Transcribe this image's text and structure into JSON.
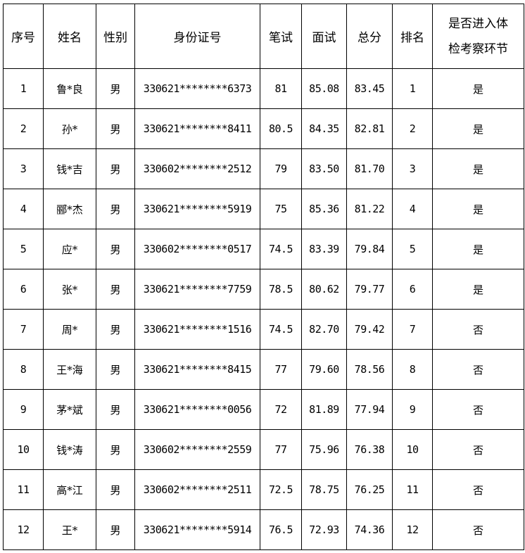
{
  "headers": [
    "序号",
    "姓名",
    "性别",
    "身份证号",
    "笔试",
    "面试",
    "总分",
    "排名",
    "是否进入体检考察环节"
  ],
  "rows": [
    [
      "1",
      "鲁*良",
      "男",
      "330621********6373",
      "81",
      "85.08",
      "83.45",
      "1",
      "是"
    ],
    [
      "2",
      "孙*",
      "男",
      "330621********8411",
      "80.5",
      "84.35",
      "82.81",
      "2",
      "是"
    ],
    [
      "3",
      "钱*吉",
      "男",
      "330602********2512",
      "79",
      "83.50",
      "81.70",
      "3",
      "是"
    ],
    [
      "4",
      "郦*杰",
      "男",
      "330621********5919",
      "75",
      "85.36",
      "81.22",
      "4",
      "是"
    ],
    [
      "5",
      "应*",
      "男",
      "330602********0517",
      "74.5",
      "83.39",
      "79.84",
      "5",
      "是"
    ],
    [
      "6",
      "张*",
      "男",
      "330621********7759",
      "78.5",
      "80.62",
      "79.77",
      "6",
      "是"
    ],
    [
      "7",
      "周*",
      "男",
      "330621********1516",
      "74.5",
      "82.70",
      "79.42",
      "7",
      "否"
    ],
    [
      "8",
      "王*海",
      "男",
      "330621********8415",
      "77",
      "79.60",
      "78.56",
      "8",
      "否"
    ],
    [
      "9",
      "茅*斌",
      "男",
      "330621********0056",
      "72",
      "81.89",
      "77.94",
      "9",
      "否"
    ],
    [
      "10",
      "钱*涛",
      "男",
      "330602********2559",
      "77",
      "75.96",
      "76.38",
      "10",
      "否"
    ],
    [
      "11",
      "高*江",
      "男",
      "330602********2511",
      "72.5",
      "78.75",
      "76.25",
      "11",
      "否"
    ],
    [
      "12",
      "王*",
      "男",
      "330621********5914",
      "76.5",
      "72.93",
      "74.36",
      "12",
      "否"
    ]
  ]
}
